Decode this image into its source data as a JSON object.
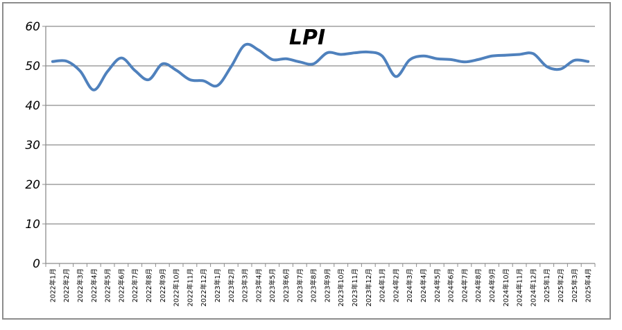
{
  "chart_data": {
    "type": "line",
    "title": "LPI",
    "xlabel": "",
    "ylabel": "",
    "ylim": [
      0,
      60
    ],
    "yticks": [
      0,
      10,
      20,
      30,
      40,
      50,
      60
    ],
    "grid": true,
    "legend": "none",
    "line_color": "#4f81bd",
    "categories": [
      "2022年1月",
      "2022年2月",
      "2022年3月",
      "2022年4月",
      "2022年5月",
      "2022年6月",
      "2022年7月",
      "2022年8月",
      "2022年9月",
      "2022年10月",
      "2022年11月",
      "2022年12月",
      "2023年1月",
      "2023年2月",
      "2023年3月",
      "2023年4月",
      "2023年5月",
      "2023年6月",
      "2023年7月",
      "2023年8月",
      "2023年9月",
      "2023年10月",
      "2023年11月",
      "2023年12月",
      "2024年1月",
      "2024年2月",
      "2024年3月",
      "2024年4月",
      "2024年5月",
      "2024年6月",
      "2024年7月",
      "2024年8月",
      "2024年9月",
      "2024年10月",
      "2024年11月",
      "2024年12月",
      "2025年1月",
      "2025年2月",
      "2025年3月",
      "2025年4月"
    ],
    "series": [
      {
        "values": [
          51.1,
          51.2,
          48.7,
          43.9,
          48.6,
          52.0,
          48.8,
          46.5,
          50.5,
          48.9,
          46.5,
          46.2,
          45.0,
          49.8,
          55.3,
          54.0,
          51.6,
          51.8,
          51.0,
          50.5,
          53.3,
          52.9,
          53.3,
          53.5,
          52.5,
          47.3,
          51.5,
          52.5,
          51.8,
          51.6,
          51.0,
          51.6,
          52.5,
          52.7,
          52.9,
          53.1,
          49.8,
          49.2,
          51.4,
          51.1
        ]
      }
    ]
  }
}
